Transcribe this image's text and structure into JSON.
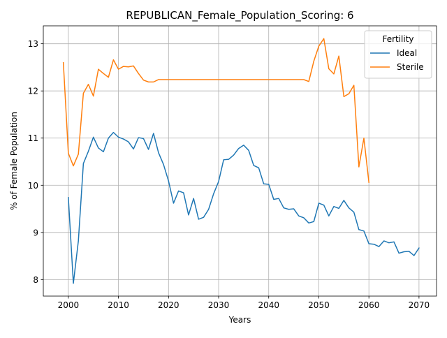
{
  "chart_data": {
    "type": "line",
    "title": "REPUBLICAN_Female_Population_Scoring: 6",
    "xlabel": "Years",
    "ylabel": "% of Female Population",
    "xlim": [
      1995,
      2073.5
    ],
    "ylim": [
      7.65,
      13.38
    ],
    "xticks": [
      2000,
      2010,
      2020,
      2030,
      2040,
      2050,
      2060,
      2070
    ],
    "yticks": [
      8,
      9,
      10,
      11,
      12,
      13
    ],
    "grid": true,
    "legend": {
      "title": "Fertility",
      "placement": "top-right"
    },
    "series": [
      {
        "name": "Ideal",
        "color": "#1f77b4",
        "x": [
          2000,
          2001,
          2002,
          2003,
          2004,
          2005,
          2006,
          2007,
          2008,
          2009,
          2010,
          2011,
          2012,
          2013,
          2014,
          2015,
          2016,
          2017,
          2018,
          2019,
          2020,
          2021,
          2022,
          2023,
          2024,
          2025,
          2026,
          2027,
          2028,
          2029,
          2030,
          2031,
          2032,
          2033,
          2034,
          2035,
          2036,
          2037,
          2038,
          2039,
          2040,
          2041,
          2042,
          2043,
          2044,
          2045,
          2046,
          2047,
          2048,
          2049,
          2050,
          2051,
          2052,
          2053,
          2054,
          2055,
          2056,
          2057,
          2058,
          2059,
          2060,
          2061,
          2062,
          2063,
          2064,
          2065,
          2066,
          2067,
          2068,
          2069,
          2070
        ],
        "y": [
          9.74,
          7.92,
          8.82,
          10.46,
          10.72,
          11.02,
          10.79,
          10.71,
          11.0,
          11.12,
          11.02,
          10.98,
          10.92,
          10.77,
          11.01,
          10.99,
          10.76,
          11.1,
          10.69,
          10.44,
          10.09,
          9.62,
          9.88,
          9.84,
          9.37,
          9.72,
          9.28,
          9.32,
          9.49,
          9.82,
          10.08,
          10.54,
          10.55,
          10.64,
          10.78,
          10.85,
          10.74,
          10.42,
          10.37,
          10.03,
          10.02,
          9.7,
          9.72,
          9.52,
          9.49,
          9.5,
          9.35,
          9.31,
          9.2,
          9.23,
          9.62,
          9.58,
          9.35,
          9.55,
          9.51,
          9.68,
          9.52,
          9.43,
          9.06,
          9.03,
          8.76,
          8.75,
          8.7,
          8.82,
          8.78,
          8.8,
          8.56,
          8.59,
          8.6,
          8.51,
          8.67
        ]
      },
      {
        "name": "Sterile",
        "color": "#ff7f0e",
        "x": [
          1999,
          2000,
          2001,
          2002,
          2003,
          2004,
          2005,
          2006,
          2007,
          2008,
          2009,
          2010,
          2011,
          2012,
          2013,
          2014,
          2015,
          2016,
          2017,
          2018,
          2019,
          2020,
          2021,
          2022,
          2023,
          2024,
          2025,
          2026,
          2027,
          2028,
          2029,
          2030,
          2031,
          2032,
          2033,
          2034,
          2035,
          2036,
          2037,
          2038,
          2039,
          2040,
          2041,
          2042,
          2043,
          2044,
          2045,
          2046,
          2047,
          2048,
          2049,
          2050,
          2051,
          2052,
          2053,
          2054,
          2055,
          2056,
          2057,
          2058,
          2059,
          2060
        ],
        "y": [
          12.6,
          10.68,
          10.41,
          10.66,
          11.95,
          12.14,
          11.89,
          12.46,
          12.37,
          12.29,
          12.66,
          12.46,
          12.52,
          12.51,
          12.53,
          12.37,
          12.23,
          12.19,
          12.19,
          12.24,
          12.24,
          12.24,
          12.24,
          12.24,
          12.24,
          12.24,
          12.24,
          12.24,
          12.24,
          12.24,
          12.24,
          12.24,
          12.24,
          12.24,
          12.24,
          12.24,
          12.24,
          12.24,
          12.24,
          12.24,
          12.24,
          12.24,
          12.24,
          12.24,
          12.24,
          12.24,
          12.24,
          12.24,
          12.24,
          12.2,
          12.63,
          12.95,
          13.11,
          12.47,
          12.36,
          12.74,
          11.88,
          11.94,
          12.12,
          10.39,
          11.0,
          10.06
        ]
      }
    ]
  }
}
